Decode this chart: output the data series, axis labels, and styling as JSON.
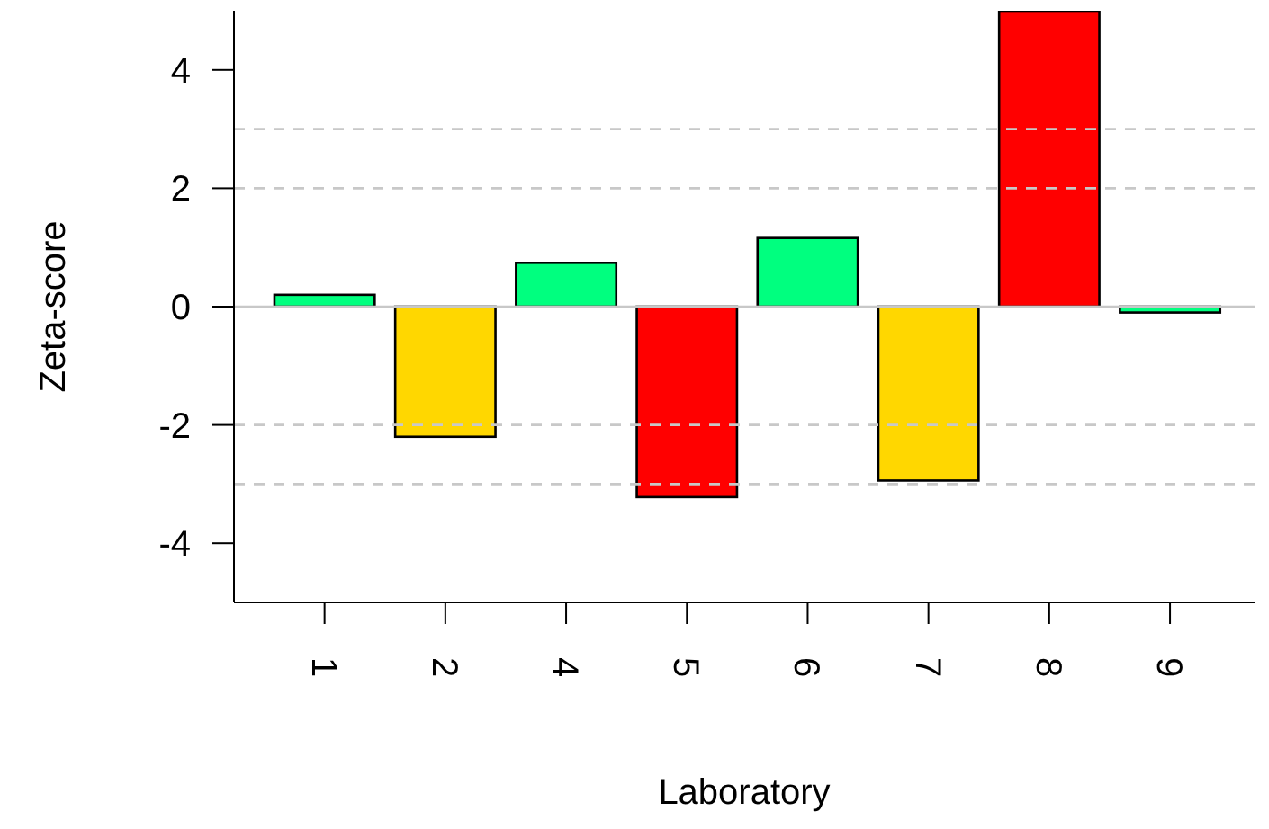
{
  "chart_data": {
    "type": "bar",
    "xlabel": "Laboratory",
    "ylabel": "Zeta-score",
    "categories": [
      "1",
      "2",
      "4",
      "5",
      "6",
      "7",
      "8",
      "9"
    ],
    "values": [
      0.2,
      -2.2,
      0.74,
      -3.22,
      1.16,
      -2.94,
      5,
      -0.1
    ],
    "colors": [
      "#00ff7f",
      "#ffd700",
      "#00ff7f",
      "#ff0000",
      "#00ff7f",
      "#ffd700",
      "#ff0000",
      "#00ff7f"
    ],
    "ylim": [
      -5,
      5
    ],
    "yticks": [
      -4,
      -2,
      0,
      2,
      4
    ],
    "grid": false,
    "ref_lines": [
      {
        "axis": "y",
        "value": 3,
        "color": "#c8c8c8",
        "line_style": "dashed"
      },
      {
        "axis": "y",
        "value": 2,
        "color": "#c8c8c8",
        "line_style": "dashed"
      },
      {
        "axis": "y",
        "value": 0,
        "color": "#c8c8c8",
        "line_style": "solid"
      },
      {
        "axis": "y",
        "value": -2,
        "color": "#c8c8c8",
        "line_style": "dashed"
      },
      {
        "axis": "y",
        "value": -3,
        "color": "#c8c8c8",
        "line_style": "dashed"
      }
    ]
  }
}
